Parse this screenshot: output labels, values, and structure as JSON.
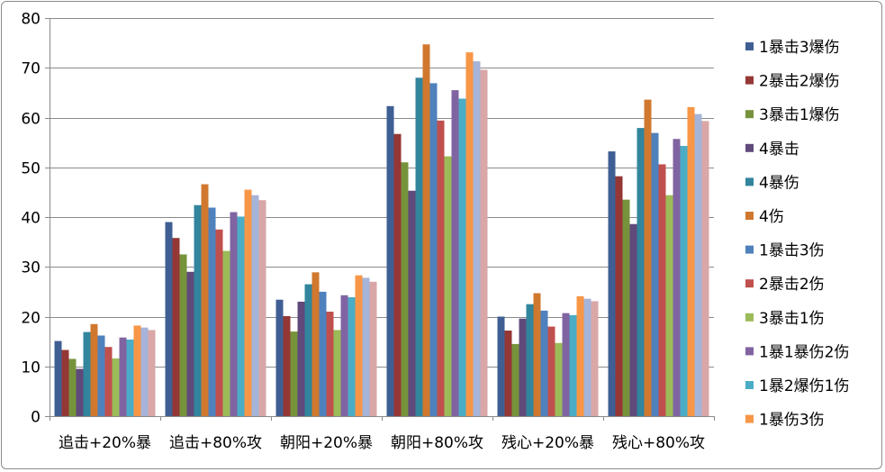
{
  "chart_data": {
    "type": "bar",
    "title": "",
    "xlabel": "",
    "ylabel": "",
    "ylim": [
      0,
      80
    ],
    "yticks": [
      0,
      10,
      20,
      30,
      40,
      50,
      60,
      70,
      80
    ],
    "grid": true,
    "legend_position": "right",
    "categories": [
      "追击+20%暴",
      "追击+80%攻",
      "朝阳+20%暴",
      "朝阳+80%攻",
      "残心+20%暴",
      "残心+80%攻"
    ],
    "series": [
      {
        "name": "1暴击3爆伤",
        "color": "#3f5f94",
        "values": [
          15.1,
          39.0,
          23.4,
          62.3,
          20.0,
          53.2
        ]
      },
      {
        "name": "2暴击2爆伤",
        "color": "#953735",
        "values": [
          13.3,
          35.8,
          20.1,
          56.7,
          17.2,
          48.2
        ]
      },
      {
        "name": "3暴击1爆伤",
        "color": "#76933c",
        "values": [
          11.5,
          32.5,
          17.0,
          51.0,
          14.5,
          43.5
        ]
      },
      {
        "name": "4暴击",
        "color": "#5f4a7b",
        "values": [
          9.5,
          29.0,
          23.0,
          45.3,
          19.6,
          38.6
        ]
      },
      {
        "name": "4暴伤",
        "color": "#31859c",
        "values": [
          16.9,
          42.4,
          26.5,
          68.0,
          22.5,
          57.9
        ]
      },
      {
        "name": "4伤",
        "color": "#d0782e",
        "values": [
          18.5,
          46.6,
          28.9,
          74.7,
          24.7,
          63.6
        ]
      },
      {
        "name": "1暴击3伤",
        "color": "#4f81bd",
        "values": [
          16.2,
          41.9,
          25.0,
          66.9,
          21.2,
          56.9
        ]
      },
      {
        "name": "2暴击2伤",
        "color": "#c0504d",
        "values": [
          13.9,
          37.5,
          21.0,
          59.4,
          18.0,
          50.6
        ]
      },
      {
        "name": "3暴击1伤",
        "color": "#9bbb59",
        "values": [
          11.6,
          33.2,
          17.3,
          52.2,
          14.7,
          44.4
        ]
      },
      {
        "name": "1暴1暴伤2伤",
        "color": "#8064a2",
        "values": [
          15.8,
          41.0,
          24.3,
          65.5,
          20.7,
          55.7
        ]
      },
      {
        "name": "1暴2爆伤1伤",
        "color": "#4bacc6",
        "values": [
          15.4,
          40.1,
          23.9,
          63.8,
          20.3,
          54.3
        ]
      },
      {
        "name": "1暴伤3伤",
        "color": "#f79646",
        "values": [
          18.2,
          45.5,
          28.3,
          73.1,
          24.1,
          62.1
        ]
      },
      {
        "name": "",
        "color": "#a5b4d8",
        "values": [
          17.8,
          44.4,
          27.8,
          71.3,
          23.6,
          60.7
        ]
      },
      {
        "name": "",
        "color": "#d9a7a7",
        "values": [
          17.3,
          43.4,
          27.0,
          69.6,
          23.1,
          59.3
        ]
      }
    ]
  }
}
